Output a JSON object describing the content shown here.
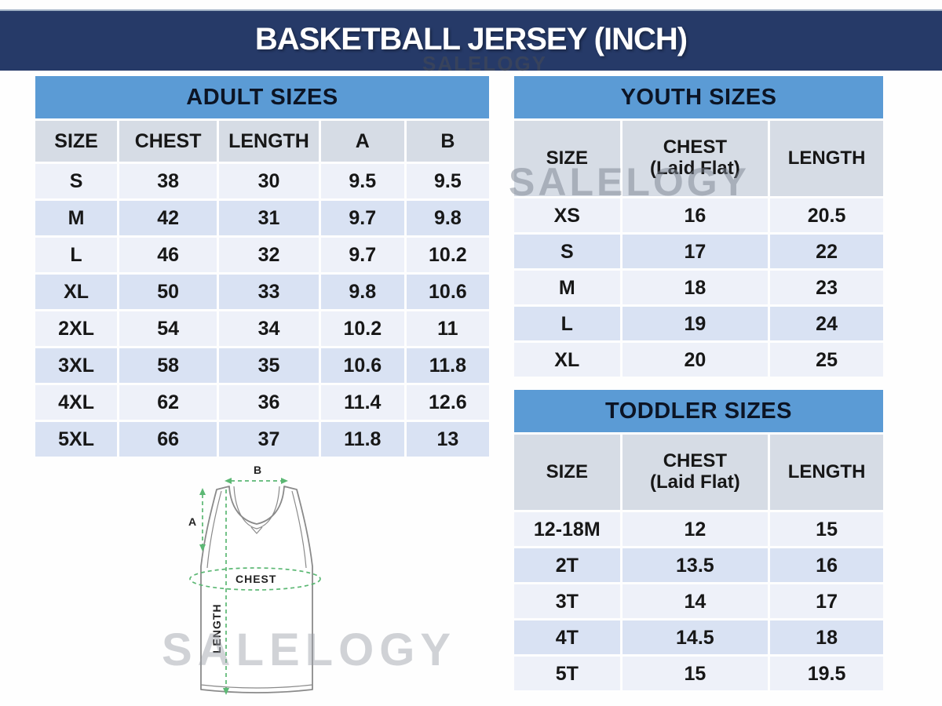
{
  "header": {
    "title": "BASKETBALL JERSEY (INCH)"
  },
  "watermark": {
    "text": "SALELOGY"
  },
  "colors": {
    "navy": "#263a68",
    "table_title_bg": "#5b9bd5",
    "header_cell_bg": "#d6dce5",
    "row_light": "#eef1f9",
    "row_dark": "#d9e2f3",
    "accent_green": "#5cb874"
  },
  "tables": {
    "adult": {
      "title": "ADULT SIZES",
      "columns": [
        "SIZE",
        "CHEST",
        "LENGTH",
        "A",
        "B"
      ],
      "rows": [
        [
          "S",
          "38",
          "30",
          "9.5",
          "9.5"
        ],
        [
          "M",
          "42",
          "31",
          "9.7",
          "9.8"
        ],
        [
          "L",
          "46",
          "32",
          "9.7",
          "10.2"
        ],
        [
          "XL",
          "50",
          "33",
          "9.8",
          "10.6"
        ],
        [
          "2XL",
          "54",
          "34",
          "10.2",
          "11"
        ],
        [
          "3XL",
          "58",
          "35",
          "10.6",
          "11.8"
        ],
        [
          "4XL",
          "62",
          "36",
          "11.4",
          "12.6"
        ],
        [
          "5XL",
          "66",
          "37",
          "11.8",
          "13"
        ]
      ]
    },
    "youth": {
      "title": "YOUTH SIZES",
      "columns": [
        "SIZE",
        "CHEST\n(Laid Flat)",
        "LENGTH"
      ],
      "rows": [
        [
          "XS",
          "16",
          "20.5"
        ],
        [
          "S",
          "17",
          "22"
        ],
        [
          "M",
          "18",
          "23"
        ],
        [
          "L",
          "19",
          "24"
        ],
        [
          "XL",
          "20",
          "25"
        ]
      ]
    },
    "toddler": {
      "title": "TODDLER SIZES",
      "columns": [
        "SIZE",
        "CHEST\n(Laid Flat)",
        "LENGTH"
      ],
      "rows": [
        [
          "12-18M",
          "12",
          "15"
        ],
        [
          "2T",
          "13.5",
          "16"
        ],
        [
          "3T",
          "14",
          "17"
        ],
        [
          "4T",
          "14.5",
          "18"
        ],
        [
          "5T",
          "15",
          "19.5"
        ]
      ]
    }
  },
  "diagram": {
    "label_a": "A",
    "label_b": "B",
    "label_chest": "CHEST",
    "label_length": "LENGTH"
  }
}
